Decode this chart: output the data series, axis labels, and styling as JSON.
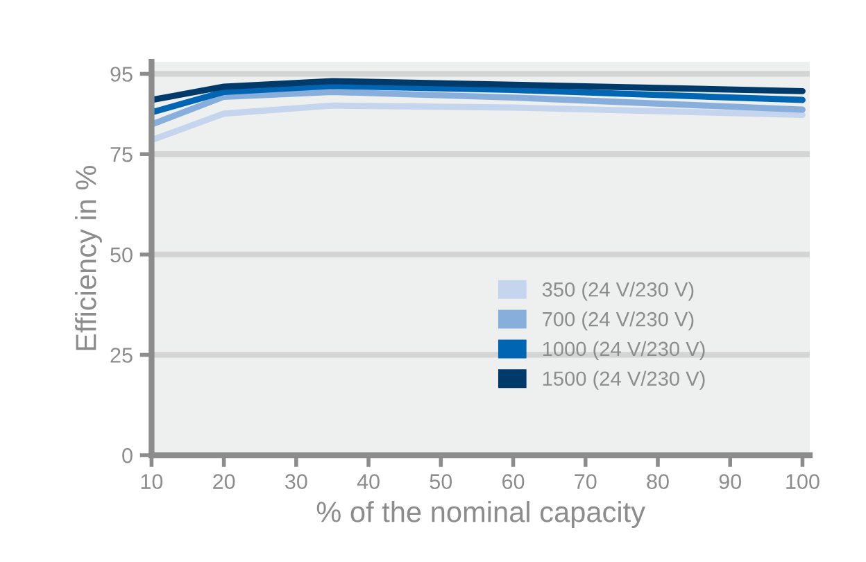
{
  "chart_data": {
    "type": "line",
    "xlabel": "% of the nominal capacity",
    "ylabel": "Efficiency in %",
    "x": [
      10,
      20,
      35,
      60,
      100
    ],
    "series": [
      {
        "name": "350 (24 V/230 V)",
        "color": "#c5d5ee",
        "values": [
          78.5,
          85.1,
          87.1,
          86.6,
          84.8
        ]
      },
      {
        "name": "700 (24 V/230 V)",
        "color": "#88aedc",
        "values": [
          82.4,
          89.3,
          90.5,
          89.1,
          86.1
        ]
      },
      {
        "name": "1000 (24 V/230 V)",
        "color": "#0066b3",
        "values": [
          85.4,
          90.5,
          92.0,
          91.0,
          88.5
        ]
      },
      {
        "name": "1500 (24 V/230 V)",
        "color": "#003a6b",
        "values": [
          88.5,
          91.8,
          93.2,
          92.3,
          90.7
        ]
      }
    ],
    "xlim": [
      10,
      101
    ],
    "xticks": [
      10,
      20,
      30,
      40,
      50,
      60,
      70,
      80,
      90,
      100
    ],
    "ylim": [
      0,
      98
    ],
    "yticks": [
      0,
      25,
      50,
      75,
      95
    ],
    "grid": "y",
    "legend": "lower right",
    "marker": "none",
    "line_style": "solid"
  }
}
